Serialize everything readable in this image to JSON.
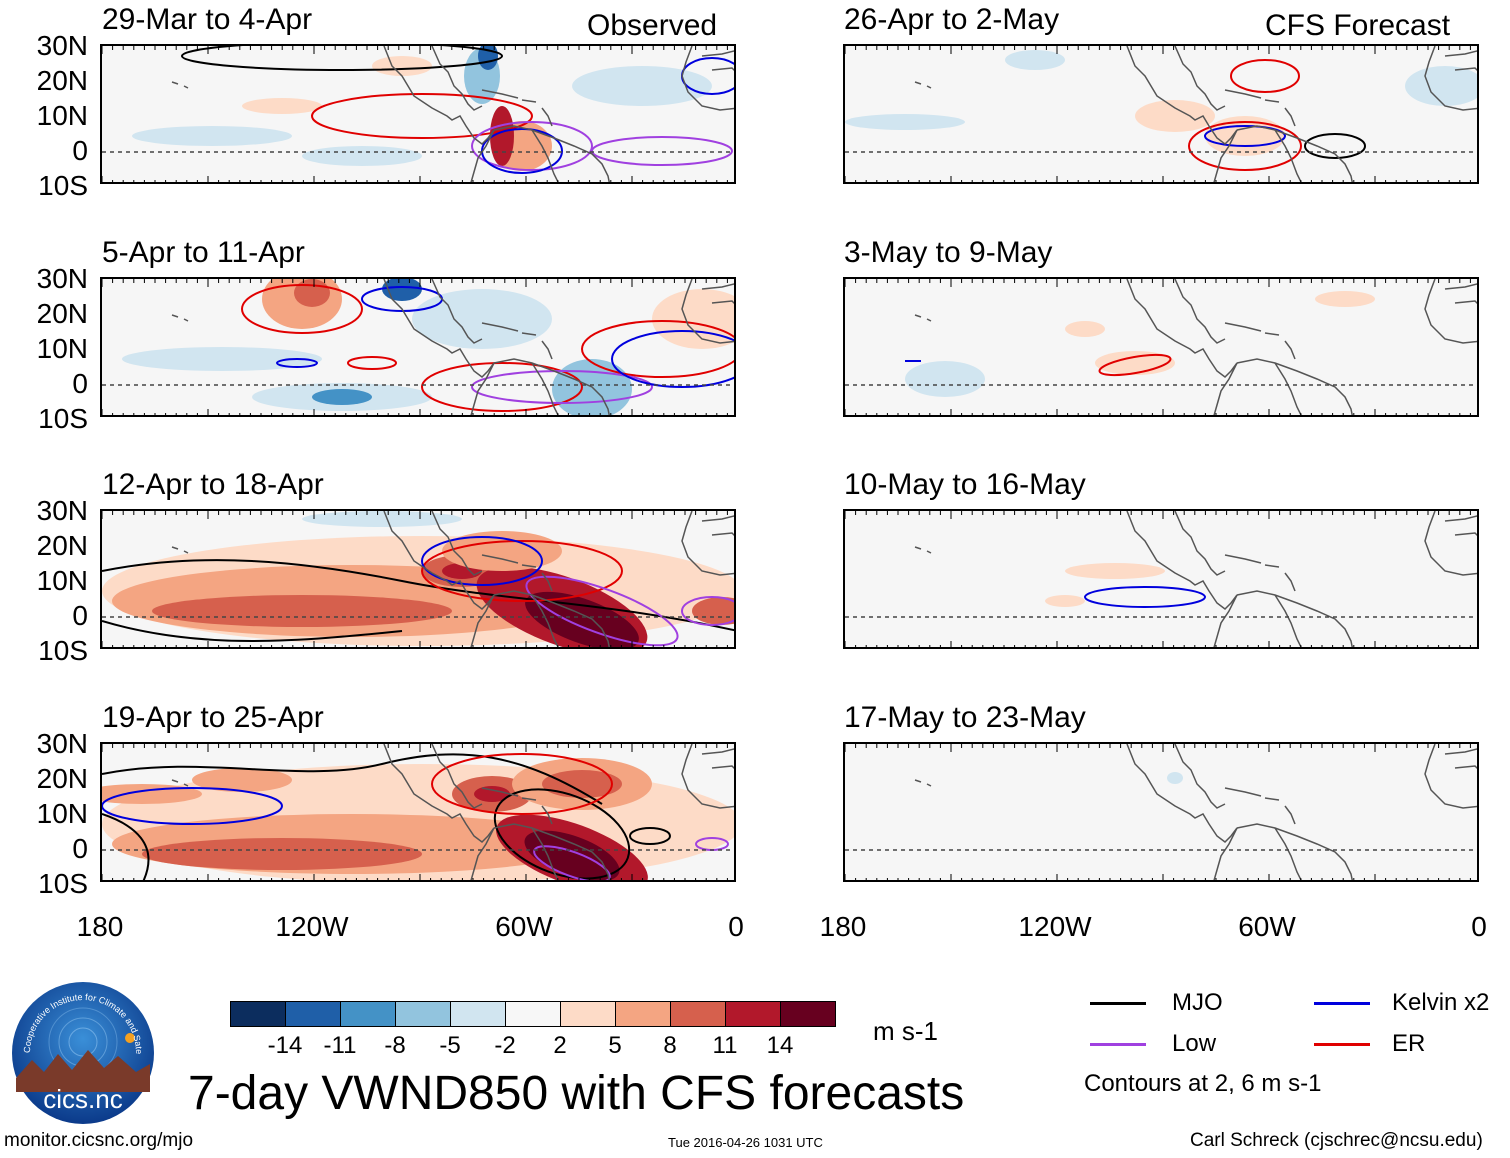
{
  "title": "7-day VWND850 with CFS forecasts",
  "headers": {
    "observed": "Observed",
    "forecast": "CFS Forecast"
  },
  "panels": {
    "obs": [
      {
        "period": "29-Mar to 4-Apr"
      },
      {
        "period": "5-Apr to 11-Apr"
      },
      {
        "period": "12-Apr to 18-Apr"
      },
      {
        "period": "19-Apr to 25-Apr"
      }
    ],
    "fcst": [
      {
        "period": "26-Apr to 2-May"
      },
      {
        "period": "3-May to 9-May"
      },
      {
        "period": "10-May to 16-May"
      },
      {
        "period": "17-May to 23-May"
      }
    ]
  },
  "axes": {
    "lat_labels": [
      "30N",
      "20N",
      "10N",
      "0",
      "10S"
    ],
    "lon_labels": [
      "180",
      "120W",
      "60W",
      "0"
    ]
  },
  "colorbar": {
    "ticks": [
      "-14",
      "-11",
      "-8",
      "-5",
      "-2",
      "2",
      "5",
      "8",
      "11",
      "14"
    ],
    "colors": [
      "#0c2d5e",
      "#1f5fa8",
      "#4492c6",
      "#92c4de",
      "#d1e5f0",
      "#f7f7f7",
      "#fddbc7",
      "#f4a582",
      "#d6604d",
      "#b2182b",
      "#67001f"
    ],
    "units": "m s-1"
  },
  "legend": {
    "items": [
      {
        "label": "MJO",
        "color": "#000000"
      },
      {
        "label": "Kelvin x2",
        "color": "#0000dd"
      },
      {
        "label": "Low",
        "color": "#a040e0"
      },
      {
        "label": "ER",
        "color": "#e00000"
      }
    ],
    "note": "Contours at 2, 6 m s-1"
  },
  "logo": {
    "text": "cics.nc",
    "ring_text": "Cooperative Institute for Climate and Satellites"
  },
  "footer": {
    "url": "monitor.cicsnc.org/mjo",
    "timestamp": "Tue 2016-04-26 1031 UTC",
    "author": "Carl Schreck (cjschrec@ncsu.edu)"
  }
}
